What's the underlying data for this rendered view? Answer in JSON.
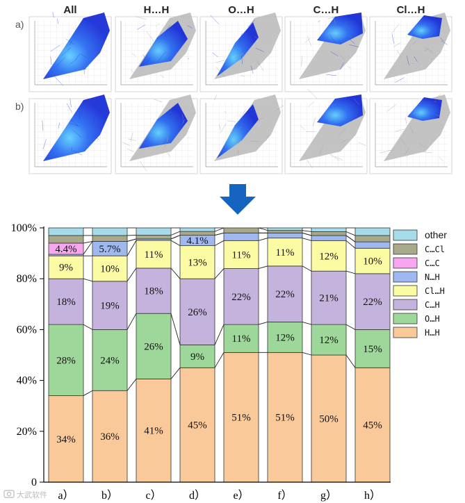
{
  "fingerprint": {
    "column_titles": [
      "All",
      "H…H",
      "O…H",
      "C…H",
      "Cl…H"
    ],
    "row_labels": [
      "a)",
      "b)"
    ],
    "colors": {
      "highlight": "#1f3fe0",
      "core": "#39a9ff",
      "grey": "#b8b8b8",
      "grid": "#c9c9c9",
      "frame": "#d6d6d6"
    }
  },
  "arrow": {
    "color": "#1565c0",
    "icon": "down-arrow-icon"
  },
  "watermark": {
    "text": "大武软件",
    "icon": "camera-icon"
  },
  "chart_data": {
    "type": "bar",
    "stacked": true,
    "categories": [
      "a）",
      "b）",
      "c）",
      "d）",
      "e）",
      "f）",
      "g）",
      "h）"
    ],
    "ylim": [
      0,
      100
    ],
    "yticks": [
      0,
      20,
      40,
      60,
      80,
      100
    ],
    "ytick_labels": [
      "0",
      "20%",
      "40%",
      "60%",
      "80%",
      "100%"
    ],
    "series": [
      {
        "name": "H…H",
        "color": "#f9c99a",
        "values": [
          34,
          36,
          41,
          45,
          51,
          51,
          50,
          45
        ],
        "labels": [
          "34%",
          "36%",
          "41%",
          "45%",
          "51%",
          "51%",
          "50%",
          "45%"
        ]
      },
      {
        "name": "O…H",
        "color": "#9ed79a",
        "values": [
          28,
          24,
          26,
          9,
          11,
          12,
          12,
          15
        ],
        "labels": [
          "28%",
          "24%",
          "26%",
          "9%",
          "11%",
          "12%",
          "12%",
          "15%"
        ]
      },
      {
        "name": "C…H",
        "color": "#c4b3dc",
        "values": [
          18,
          19,
          18,
          26,
          22,
          22,
          21,
          22
        ],
        "labels": [
          "18%",
          "19%",
          "18%",
          "26%",
          "22%",
          "22%",
          "21%",
          "22%"
        ]
      },
      {
        "name": "Cl…H",
        "color": "#fbfba4",
        "values": [
          9,
          10,
          11,
          13,
          11,
          11,
          12,
          10
        ],
        "labels": [
          "9%",
          "10%",
          "11%",
          "13%",
          "11%",
          "11%",
          "12%",
          "10%"
        ]
      },
      {
        "name": "N…H",
        "color": "#9fb8f0",
        "values": [
          0.6,
          5.7,
          0.6,
          4.1,
          3.0,
          2.0,
          2.0,
          2.5
        ],
        "labels": [
          "",
          "5.7%",
          "",
          "4.1%",
          "",
          "",
          "",
          ""
        ]
      },
      {
        "name": "C…C",
        "color": "#f7a6ef",
        "values": [
          4.4,
          0,
          0,
          0,
          0,
          0,
          0,
          0
        ],
        "labels": [
          "4.4%",
          "",
          "",
          "",
          "",
          "",
          "",
          ""
        ]
      },
      {
        "name": "C…Cl",
        "color": "#a8a88a",
        "values": [
          3.0,
          2.3,
          1.5,
          1.5,
          2.0,
          1.0,
          1.5,
          2.5
        ],
        "labels": [
          "",
          "",
          "",
          "",
          "",
          "",
          "",
          ""
        ]
      },
      {
        "name": "other",
        "color": "#a6dcea",
        "values": [
          3.0,
          3.0,
          2.9,
          1.4,
          0.0,
          1.0,
          1.5,
          3.0
        ],
        "labels": [
          "",
          "",
          "",
          "",
          "",
          "",
          "",
          ""
        ]
      }
    ],
    "legend_order": [
      "other",
      "C…Cl",
      "C…C",
      "N…H",
      "Cl…H",
      "C…H",
      "O…H",
      "H…H"
    ],
    "legend_position": "right"
  }
}
